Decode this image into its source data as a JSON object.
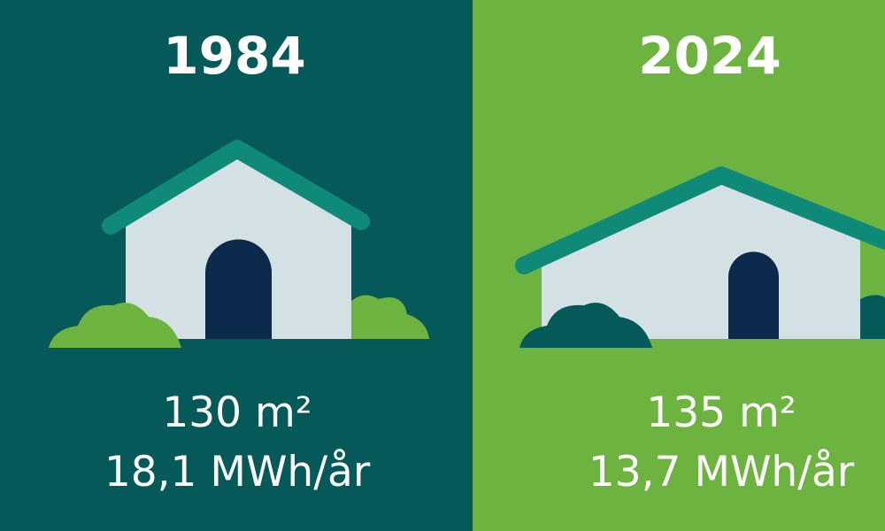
{
  "panels": [
    {
      "year": "1984",
      "area": "130 m²",
      "energy": "18,1 MWh/år"
    },
    {
      "year": "2024",
      "area": "135 m²",
      "energy": "13,7 MWh/år"
    }
  ]
}
